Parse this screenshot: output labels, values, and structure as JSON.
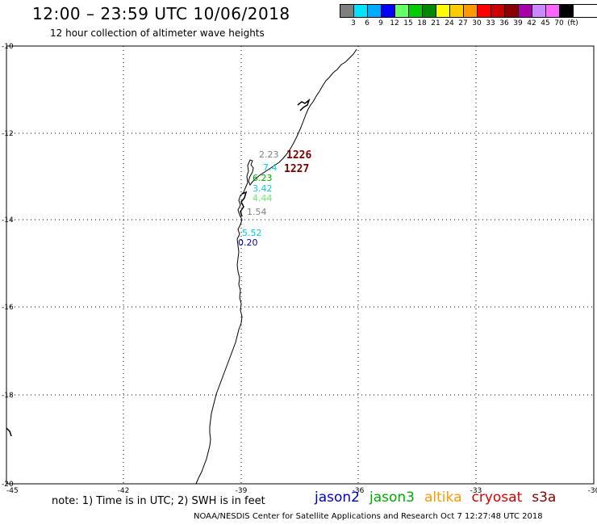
{
  "header": {
    "title": "12:00 – 23:59 UTC 10/06/2018",
    "subtitle": "12 hour collection of altimeter wave heights"
  },
  "color_scale": {
    "labels": [
      "3",
      "6",
      "9",
      "12",
      "15",
      "18",
      "21",
      "24",
      "27",
      "30",
      "33",
      "36",
      "39",
      "42",
      "45",
      "70",
      "(ft)"
    ],
    "colors": [
      "#7f7f7f",
      "#00e5ff",
      "#00aaff",
      "#0000ff",
      "#66ff66",
      "#00cc00",
      "#008800",
      "#ffff00",
      "#ffcc00",
      "#ff9900",
      "#ff0000",
      "#cc0000",
      "#880000",
      "#aa00aa",
      "#cc88ff",
      "#ff66ff",
      "#000000"
    ]
  },
  "axes": {
    "lat_labels": [
      "-10",
      "-12",
      "-14",
      "-16",
      "-18",
      "-20"
    ],
    "lon_labels": [
      "-45",
      "-42",
      "-39",
      "-36",
      "-33",
      "-30"
    ]
  },
  "observations": [
    {
      "text": "2.23",
      "color": "#808080"
    },
    {
      "text": "7.4",
      "color": "#00ccdd"
    },
    {
      "text": "6.23",
      "color": "#00aa00"
    },
    {
      "text": "3.42",
      "color": "#00ccdd"
    },
    {
      "text": "4.44",
      "color": "#66ee66"
    },
    {
      "text": "1.54",
      "color": "#808080"
    },
    {
      "text": "5.52",
      "color": "#00ccdd"
    },
    {
      "text": "0.20",
      "color": "#0000aa"
    }
  ],
  "passes": [
    {
      "text": "1226",
      "color": "#7a0000"
    },
    {
      "text": "1227",
      "color": "#7a0000"
    }
  ],
  "footer": {
    "note": "note: 1) Time is in UTC; 2) SWH is in feet",
    "satellites": [
      {
        "name": "jason2",
        "color": "#0000cc"
      },
      {
        "name": "jason3",
        "color": "#00aa00"
      },
      {
        "name": "altika",
        "color": "#ff9900"
      },
      {
        "name": "cryosat",
        "color": "#dd0000"
      },
      {
        "name": "s3a",
        "color": "#880000"
      }
    ],
    "credit": "NOAA/NESDIS Center for Satellite Applications and Research    Oct  7 12:27:48 UTC 2018"
  }
}
